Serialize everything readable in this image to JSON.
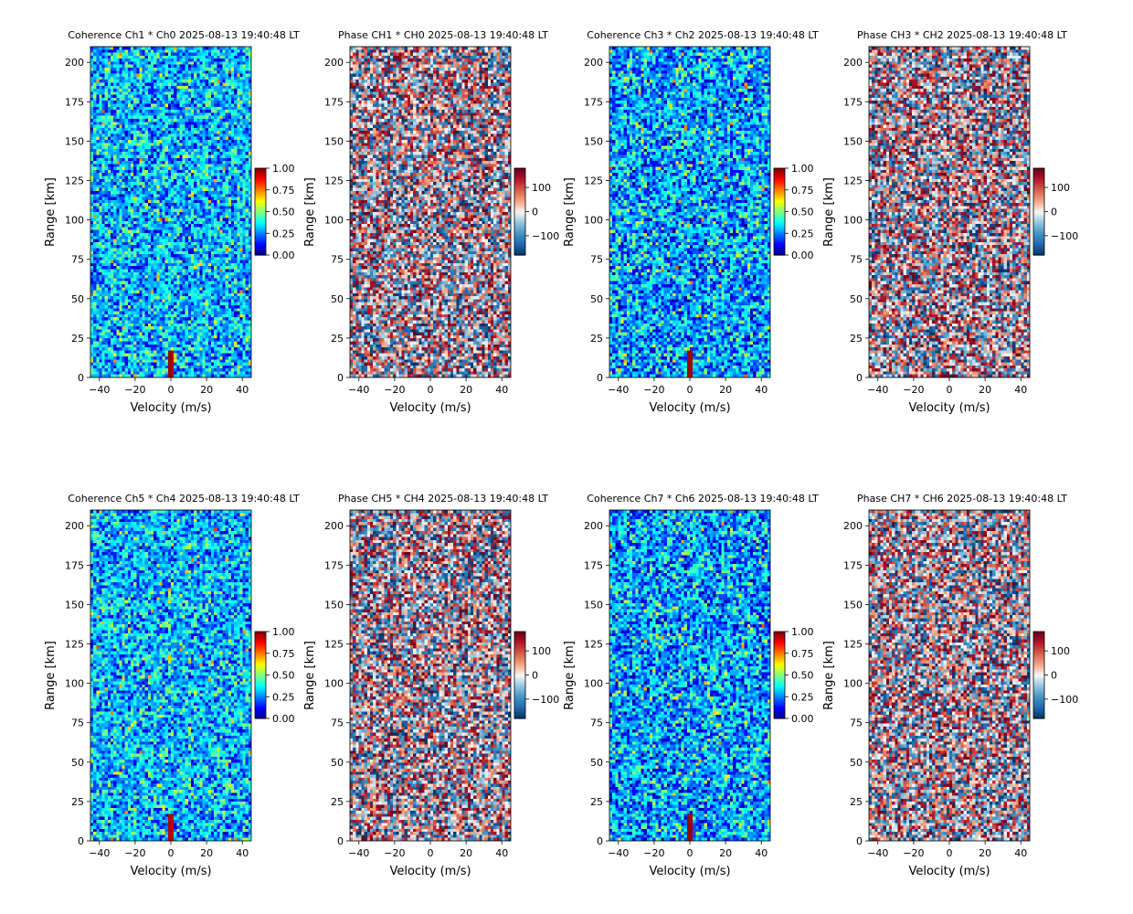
{
  "figure": {
    "colormaps": {
      "coherence": [
        "#00007f",
        "#0000ff",
        "#007fff",
        "#00ffff",
        "#7fff7f",
        "#ffff00",
        "#ff7f00",
        "#ff0000",
        "#7f0000"
      ],
      "phase": [
        "#053061",
        "#2166ac",
        "#4393c3",
        "#92c5de",
        "#f7f7f7",
        "#f4a582",
        "#d6604d",
        "#b2182b",
        "#67001f"
      ]
    }
  },
  "chart_data": [
    {
      "type": "heatmap",
      "title": "Coherence Ch1 * Ch0 2025-08-13 19:40:48 LT",
      "xlabel": "Velocity (m/s)",
      "ylabel": "Range [km]",
      "xlim": [
        -45,
        45
      ],
      "ylim": [
        0,
        210
      ],
      "xticks": [
        -40,
        -20,
        0,
        20,
        40
      ],
      "xtick_labels": [
        "−40",
        "−20",
        "0",
        "20",
        "40"
      ],
      "yticks": [
        0,
        25,
        50,
        75,
        100,
        125,
        150,
        175,
        200
      ],
      "ytick_labels": [
        "0",
        "25",
        "50",
        "75",
        "100",
        "125",
        "150",
        "175",
        "200"
      ],
      "colormap": "coherence",
      "colorbar": {
        "range": [
          0,
          1
        ],
        "ticks": [
          0,
          0.25,
          0.5,
          0.75,
          1
        ],
        "tick_labels": [
          "0.00",
          "0.25",
          "0.50",
          "0.75",
          "1.00"
        ]
      },
      "value_range": [
        0,
        1
      ],
      "noise_center": 0.3,
      "noise_spread": 0.28,
      "seed": 11,
      "feature": {
        "x_range": [
          -1,
          1
        ],
        "y_range": [
          0,
          18
        ],
        "value": 0.97
      }
    },
    {
      "type": "heatmap",
      "title": "Phase CH1 * CH0 2025-08-13 19:40:48 LT",
      "xlabel": "Velocity (m/s)",
      "ylabel": "Range [km]",
      "xlim": [
        -45,
        45
      ],
      "ylim": [
        0,
        210
      ],
      "xticks": [
        -40,
        -20,
        0,
        20,
        40
      ],
      "xtick_labels": [
        "−40",
        "−20",
        "0",
        "20",
        "40"
      ],
      "yticks": [
        0,
        25,
        50,
        75,
        100,
        125,
        150,
        175,
        200
      ],
      "ytick_labels": [
        "0",
        "25",
        "50",
        "75",
        "100",
        "125",
        "150",
        "175",
        "200"
      ],
      "colormap": "phase",
      "colorbar": {
        "range": [
          -180,
          180
        ],
        "ticks": [
          -100,
          0,
          100
        ],
        "tick_labels": [
          "−100",
          "0",
          "100"
        ]
      },
      "value_range": [
        -180,
        180
      ],
      "noise_center": 0,
      "noise_spread": 360,
      "seed": 23,
      "feature": null
    },
    {
      "type": "heatmap",
      "title": "Coherence Ch3 * Ch2 2025-08-13 19:40:48 LT",
      "xlabel": "Velocity (m/s)",
      "ylabel": "Range [km]",
      "xlim": [
        -45,
        45
      ],
      "ylim": [
        0,
        210
      ],
      "xticks": [
        -40,
        -20,
        0,
        20,
        40
      ],
      "xtick_labels": [
        "−40",
        "−20",
        "0",
        "20",
        "40"
      ],
      "yticks": [
        0,
        25,
        50,
        75,
        100,
        125,
        150,
        175,
        200
      ],
      "ytick_labels": [
        "0",
        "25",
        "50",
        "75",
        "100",
        "125",
        "150",
        "175",
        "200"
      ],
      "colormap": "coherence",
      "colorbar": {
        "range": [
          0,
          1
        ],
        "ticks": [
          0,
          0.25,
          0.5,
          0.75,
          1
        ],
        "tick_labels": [
          "0.00",
          "0.25",
          "0.50",
          "0.75",
          "1.00"
        ]
      },
      "value_range": [
        0,
        1
      ],
      "noise_center": 0.28,
      "noise_spread": 0.3,
      "seed": 37,
      "feature": {
        "x_range": [
          -1,
          1
        ],
        "y_range": [
          0,
          18
        ],
        "value": 0.97
      }
    },
    {
      "type": "heatmap",
      "title": "Phase CH3 * CH2 2025-08-13 19:40:48 LT",
      "xlabel": "Velocity (m/s)",
      "ylabel": "Range [km]",
      "xlim": [
        -45,
        45
      ],
      "ylim": [
        0,
        210
      ],
      "xticks": [
        -40,
        -20,
        0,
        20,
        40
      ],
      "xtick_labels": [
        "−40",
        "−20",
        "0",
        "20",
        "40"
      ],
      "yticks": [
        0,
        25,
        50,
        75,
        100,
        125,
        150,
        175,
        200
      ],
      "ytick_labels": [
        "0",
        "25",
        "50",
        "75",
        "100",
        "125",
        "150",
        "175",
        "200"
      ],
      "colormap": "phase",
      "colorbar": {
        "range": [
          -180,
          180
        ],
        "ticks": [
          -100,
          0,
          100
        ],
        "tick_labels": [
          "−100",
          "0",
          "100"
        ]
      },
      "value_range": [
        -180,
        180
      ],
      "noise_center": 0,
      "noise_spread": 360,
      "seed": 41,
      "feature": null
    },
    {
      "type": "heatmap",
      "title": "Coherence Ch5 * Ch4 2025-08-13 19:40:48 LT",
      "xlabel": "Velocity (m/s)",
      "ylabel": "Range [km]",
      "xlim": [
        -45,
        45
      ],
      "ylim": [
        0,
        210
      ],
      "xticks": [
        -40,
        -20,
        0,
        20,
        40
      ],
      "xtick_labels": [
        "−40",
        "−20",
        "0",
        "20",
        "40"
      ],
      "yticks": [
        0,
        25,
        50,
        75,
        100,
        125,
        150,
        175,
        200
      ],
      "ytick_labels": [
        "0",
        "25",
        "50",
        "75",
        "100",
        "125",
        "150",
        "175",
        "200"
      ],
      "colormap": "coherence",
      "colorbar": {
        "range": [
          0,
          1
        ],
        "ticks": [
          0,
          0.25,
          0.5,
          0.75,
          1
        ],
        "tick_labels": [
          "0.00",
          "0.25",
          "0.50",
          "0.75",
          "1.00"
        ]
      },
      "value_range": [
        0,
        1
      ],
      "noise_center": 0.3,
      "noise_spread": 0.28,
      "seed": 53,
      "feature": {
        "x_range": [
          -1,
          1
        ],
        "y_range": [
          0,
          18
        ],
        "value": 0.95
      }
    },
    {
      "type": "heatmap",
      "title": "Phase CH5 * CH4 2025-08-13 19:40:48 LT",
      "xlabel": "Velocity (m/s)",
      "ylabel": "Range [km]",
      "xlim": [
        -45,
        45
      ],
      "ylim": [
        0,
        210
      ],
      "xticks": [
        -40,
        -20,
        0,
        20,
        40
      ],
      "xtick_labels": [
        "−40",
        "−20",
        "0",
        "20",
        "40"
      ],
      "yticks": [
        0,
        25,
        50,
        75,
        100,
        125,
        150,
        175,
        200
      ],
      "ytick_labels": [
        "0",
        "25",
        "50",
        "75",
        "100",
        "125",
        "150",
        "175",
        "200"
      ],
      "colormap": "phase",
      "colorbar": {
        "range": [
          -180,
          180
        ],
        "ticks": [
          -100,
          0,
          100
        ],
        "tick_labels": [
          "−100",
          "0",
          "100"
        ]
      },
      "value_range": [
        -180,
        180
      ],
      "noise_center": 0,
      "noise_spread": 360,
      "seed": 67,
      "feature": null
    },
    {
      "type": "heatmap",
      "title": "Coherence Ch7 * Ch6 2025-08-13 19:40:48 LT",
      "xlabel": "Velocity (m/s)",
      "ylabel": "Range [km]",
      "xlim": [
        -45,
        45
      ],
      "ylim": [
        0,
        210
      ],
      "xticks": [
        -40,
        -20,
        0,
        20,
        40
      ],
      "xtick_labels": [
        "−40",
        "−20",
        "0",
        "20",
        "40"
      ],
      "yticks": [
        0,
        25,
        50,
        75,
        100,
        125,
        150,
        175,
        200
      ],
      "ytick_labels": [
        "0",
        "25",
        "50",
        "75",
        "100",
        "125",
        "150",
        "175",
        "200"
      ],
      "colormap": "coherence",
      "colorbar": {
        "range": [
          0,
          1
        ],
        "ticks": [
          0,
          0.25,
          0.5,
          0.75,
          1
        ],
        "tick_labels": [
          "0.00",
          "0.25",
          "0.50",
          "0.75",
          "1.00"
        ]
      },
      "value_range": [
        0,
        1
      ],
      "noise_center": 0.28,
      "noise_spread": 0.3,
      "seed": 79,
      "feature": {
        "x_range": [
          -1,
          1
        ],
        "y_range": [
          0,
          18
        ],
        "value": 0.97
      }
    },
    {
      "type": "heatmap",
      "title": "Phase CH7 * CH6 2025-08-13 19:40:48 LT",
      "xlabel": "Velocity (m/s)",
      "ylabel": "Range [km]",
      "xlim": [
        -45,
        45
      ],
      "ylim": [
        0,
        210
      ],
      "xticks": [
        -40,
        -20,
        0,
        20,
        40
      ],
      "xtick_labels": [
        "−40",
        "−20",
        "0",
        "20",
        "40"
      ],
      "yticks": [
        0,
        25,
        50,
        75,
        100,
        125,
        150,
        175,
        200
      ],
      "ytick_labels": [
        "0",
        "25",
        "50",
        "75",
        "100",
        "125",
        "150",
        "175",
        "200"
      ],
      "colormap": "phase",
      "colorbar": {
        "range": [
          -180,
          180
        ],
        "ticks": [
          -100,
          0,
          100
        ],
        "tick_labels": [
          "−100",
          "0",
          "100"
        ]
      },
      "value_range": [
        -180,
        180
      ],
      "noise_center": 0,
      "noise_spread": 360,
      "seed": 83,
      "feature": null
    }
  ]
}
